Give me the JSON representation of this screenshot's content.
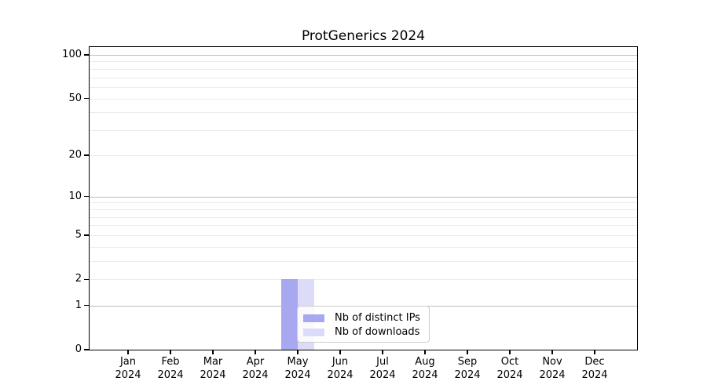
{
  "chart_data": {
    "type": "bar",
    "title": "ProtGenerics 2024",
    "categories": [
      "Jan",
      "Feb",
      "Mar",
      "Apr",
      "May",
      "Jun",
      "Jul",
      "Aug",
      "Sep",
      "Oct",
      "Nov",
      "Dec"
    ],
    "x_tick_year": "2024",
    "series": [
      {
        "name": "Nb of distinct IPs",
        "color": "#a8a8f0",
        "values": [
          0,
          0,
          0,
          0,
          2,
          0,
          0,
          0,
          0,
          0,
          0,
          0
        ]
      },
      {
        "name": "Nb of downloads",
        "color": "#dcdcf8",
        "values": [
          0,
          0,
          0,
          0,
          2,
          0,
          0,
          0,
          0,
          0,
          0,
          0
        ]
      }
    ],
    "xlabel": "",
    "ylabel": "",
    "yscale": "log1p",
    "ylim": [
      0,
      113
    ],
    "yticks": [
      0,
      1,
      2,
      5,
      10,
      20,
      50,
      100
    ],
    "major_gridlines": [
      1,
      10,
      100
    ],
    "minor_gridlines": [
      2,
      3,
      4,
      5,
      6,
      7,
      8,
      9,
      20,
      30,
      40,
      50,
      60,
      70,
      80,
      90
    ],
    "grid": true,
    "legend_position": "lower center-left inside plot",
    "colors": {
      "major_grid": "#bfbfbf",
      "minor_grid": "#ececec",
      "axis": "#000000",
      "background": "#ffffff"
    }
  }
}
